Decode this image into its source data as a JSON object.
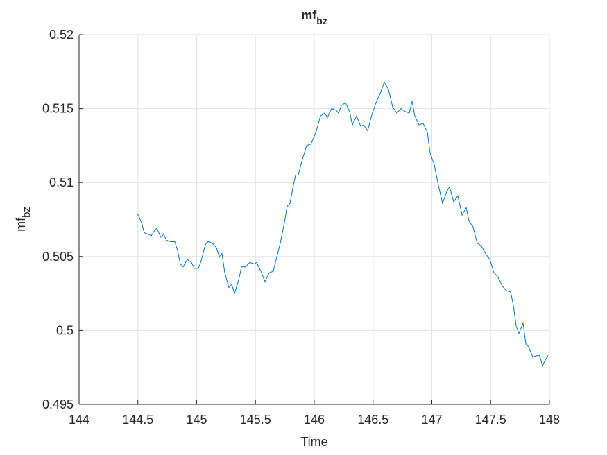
{
  "chart_data": {
    "type": "line",
    "title": "mf",
    "title_subscript": "bz",
    "xlabel": "Time",
    "ylabel": "mf",
    "ylabel_subscript": "bz",
    "color": "#0072bd",
    "grid": true,
    "xlim": [
      144,
      148
    ],
    "xticks": [
      144,
      144.5,
      145,
      145.5,
      146,
      146.5,
      147,
      147.5,
      148
    ],
    "ylim": [
      0.495,
      0.52
    ],
    "yticks": [
      0.495,
      0.5,
      0.505,
      0.51,
      0.515,
      0.52
    ],
    "x": [
      144.496,
      144.531,
      144.555,
      144.59,
      144.614,
      144.637,
      144.661,
      144.696,
      144.72,
      144.743,
      144.779,
      144.814,
      144.838,
      144.861,
      144.885,
      144.92,
      144.956,
      144.979,
      145.015,
      145.038,
      145.074,
      145.097,
      145.133,
      145.168,
      145.192,
      145.215,
      145.239,
      145.274,
      145.298,
      145.322,
      145.357,
      145.381,
      145.416,
      145.451,
      145.487,
      145.51,
      145.546,
      145.581,
      145.617,
      145.652,
      145.676,
      145.711,
      145.746,
      145.77,
      145.794,
      145.817,
      145.841,
      145.864,
      145.9,
      145.935,
      145.971,
      145.994,
      146.018,
      146.053,
      146.089,
      146.112,
      146.147,
      146.183,
      146.206,
      146.23,
      146.265,
      146.301,
      146.324,
      146.36,
      146.395,
      146.419,
      146.454,
      146.49,
      146.525,
      146.56,
      146.596,
      146.631,
      146.667,
      146.702,
      146.737,
      146.773,
      146.808,
      146.832,
      146.855,
      146.891,
      146.926,
      146.962,
      146.985,
      147.021,
      147.056,
      147.091,
      147.127,
      147.15,
      147.186,
      147.221,
      147.257,
      147.292,
      147.316,
      147.351,
      147.386,
      147.422,
      147.457,
      147.493,
      147.528,
      147.563,
      147.599,
      147.634,
      147.67,
      147.693,
      147.717,
      147.74,
      147.776,
      147.799,
      147.823,
      147.858,
      147.894,
      147.917,
      147.941,
      147.965,
      147.988
    ],
    "values": [
      0.5079,
      0.5073,
      0.5066,
      0.5065,
      0.5064,
      0.5067,
      0.5069,
      0.5063,
      0.5065,
      0.5061,
      0.506,
      0.506,
      0.5054,
      0.5045,
      0.5043,
      0.5048,
      0.5046,
      0.5042,
      0.5042,
      0.5047,
      0.5058,
      0.506,
      0.5059,
      0.5056,
      0.505,
      0.5052,
      0.5039,
      0.5029,
      0.5031,
      0.5025,
      0.5034,
      0.5043,
      0.5043,
      0.5046,
      0.5045,
      0.5046,
      0.504,
      0.5033,
      0.5039,
      0.504,
      0.5048,
      0.5059,
      0.5073,
      0.5084,
      0.5086,
      0.5096,
      0.5105,
      0.5105,
      0.5116,
      0.5125,
      0.5126,
      0.513,
      0.5135,
      0.5145,
      0.5147,
      0.5144,
      0.515,
      0.5149,
      0.5147,
      0.5152,
      0.5154,
      0.5148,
      0.5139,
      0.5145,
      0.5138,
      0.5139,
      0.5135,
      0.5146,
      0.5154,
      0.516,
      0.5168,
      0.5163,
      0.5151,
      0.5147,
      0.515,
      0.5148,
      0.5147,
      0.5155,
      0.5145,
      0.5139,
      0.514,
      0.5134,
      0.512,
      0.5112,
      0.5098,
      0.5086,
      0.5094,
      0.5097,
      0.5087,
      0.5091,
      0.5078,
      0.5083,
      0.5074,
      0.507,
      0.5059,
      0.5057,
      0.5052,
      0.5048,
      0.5039,
      0.5036,
      0.503,
      0.5027,
      0.5026,
      0.5017,
      0.5003,
      0.4998,
      0.5005,
      0.4991,
      0.4989,
      0.4982,
      0.4983,
      0.4983,
      0.4976,
      0.498,
      0.4983
    ]
  }
}
